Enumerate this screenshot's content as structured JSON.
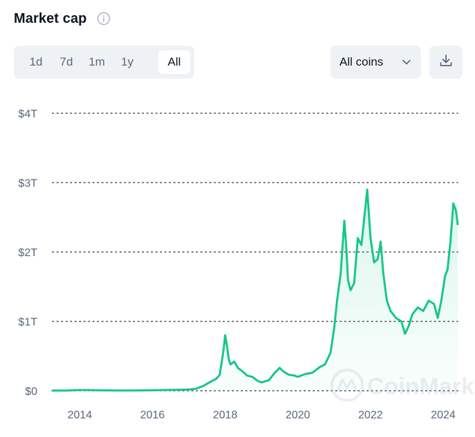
{
  "header": {
    "title": "Market cap",
    "info_icon": "info-icon"
  },
  "controls": {
    "ranges": [
      "1d",
      "7d",
      "1m",
      "1y",
      "All"
    ],
    "active_range": "All",
    "coins_select": "All coins",
    "download_icon": "download-icon"
  },
  "colors": {
    "line": "#16c784",
    "fill_top": "#16c784",
    "grid": "#3a3f4a",
    "tick_text": "#58667e",
    "control_bg": "#eff2f5"
  },
  "watermark": "CoinMarketCap",
  "chart_data": {
    "type": "area",
    "title": "",
    "xlabel": "",
    "ylabel": "",
    "xlim": [
      2013.25,
      2024.4
    ],
    "ylim": [
      0,
      4
    ],
    "y_unit": "trillion USD",
    "grid": "horizontal dotted",
    "y_ticks": [
      "$0",
      "$1T",
      "$2T",
      "$3T",
      "$4T"
    ],
    "x_ticks": [
      "2014",
      "2016",
      "2018",
      "2020",
      "2022",
      "2024"
    ],
    "series": [
      {
        "x": [
          2013.25,
          2013.6,
          2013.95,
          2014.2,
          2014.6,
          2015.0,
          2015.5,
          2016.0,
          2016.5,
          2017.0,
          2017.2,
          2017.4,
          2017.5,
          2017.6,
          2017.75,
          2017.85,
          2017.96,
          2018.0,
          2018.05,
          2018.1,
          2018.15,
          2018.25,
          2018.35,
          2018.5,
          2018.6,
          2018.75,
          2018.9,
          2019.0,
          2019.2,
          2019.35,
          2019.5,
          2019.6,
          2019.75,
          2019.9,
          2020.0,
          2020.2,
          2020.4,
          2020.6,
          2020.75,
          2020.9,
          2021.0,
          2021.08,
          2021.18,
          2021.28,
          2021.33,
          2021.38,
          2021.45,
          2021.55,
          2021.65,
          2021.75,
          2021.85,
          2021.91,
          2022.0,
          2022.1,
          2022.2,
          2022.28,
          2022.35,
          2022.45,
          2022.55,
          2022.7,
          2022.85,
          2022.95,
          2023.05,
          2023.15,
          2023.3,
          2023.45,
          2023.6,
          2023.75,
          2023.85,
          2023.95,
          2024.05,
          2024.12,
          2024.2,
          2024.28,
          2024.35,
          2024.4
        ],
        "values": [
          0.002,
          0.002,
          0.01,
          0.01,
          0.006,
          0.004,
          0.004,
          0.007,
          0.012,
          0.018,
          0.03,
          0.07,
          0.1,
          0.13,
          0.17,
          0.23,
          0.6,
          0.8,
          0.65,
          0.45,
          0.38,
          0.42,
          0.33,
          0.27,
          0.22,
          0.2,
          0.14,
          0.12,
          0.15,
          0.25,
          0.33,
          0.28,
          0.23,
          0.22,
          0.2,
          0.24,
          0.26,
          0.34,
          0.38,
          0.55,
          0.9,
          1.3,
          1.7,
          2.45,
          2.1,
          1.6,
          1.45,
          1.55,
          2.2,
          2.1,
          2.6,
          2.9,
          2.2,
          1.85,
          1.9,
          2.15,
          1.7,
          1.3,
          1.15,
          1.05,
          1.0,
          0.82,
          0.93,
          1.1,
          1.2,
          1.15,
          1.3,
          1.25,
          1.05,
          1.3,
          1.65,
          1.75,
          2.15,
          2.7,
          2.6,
          2.4
        ]
      }
    ]
  }
}
